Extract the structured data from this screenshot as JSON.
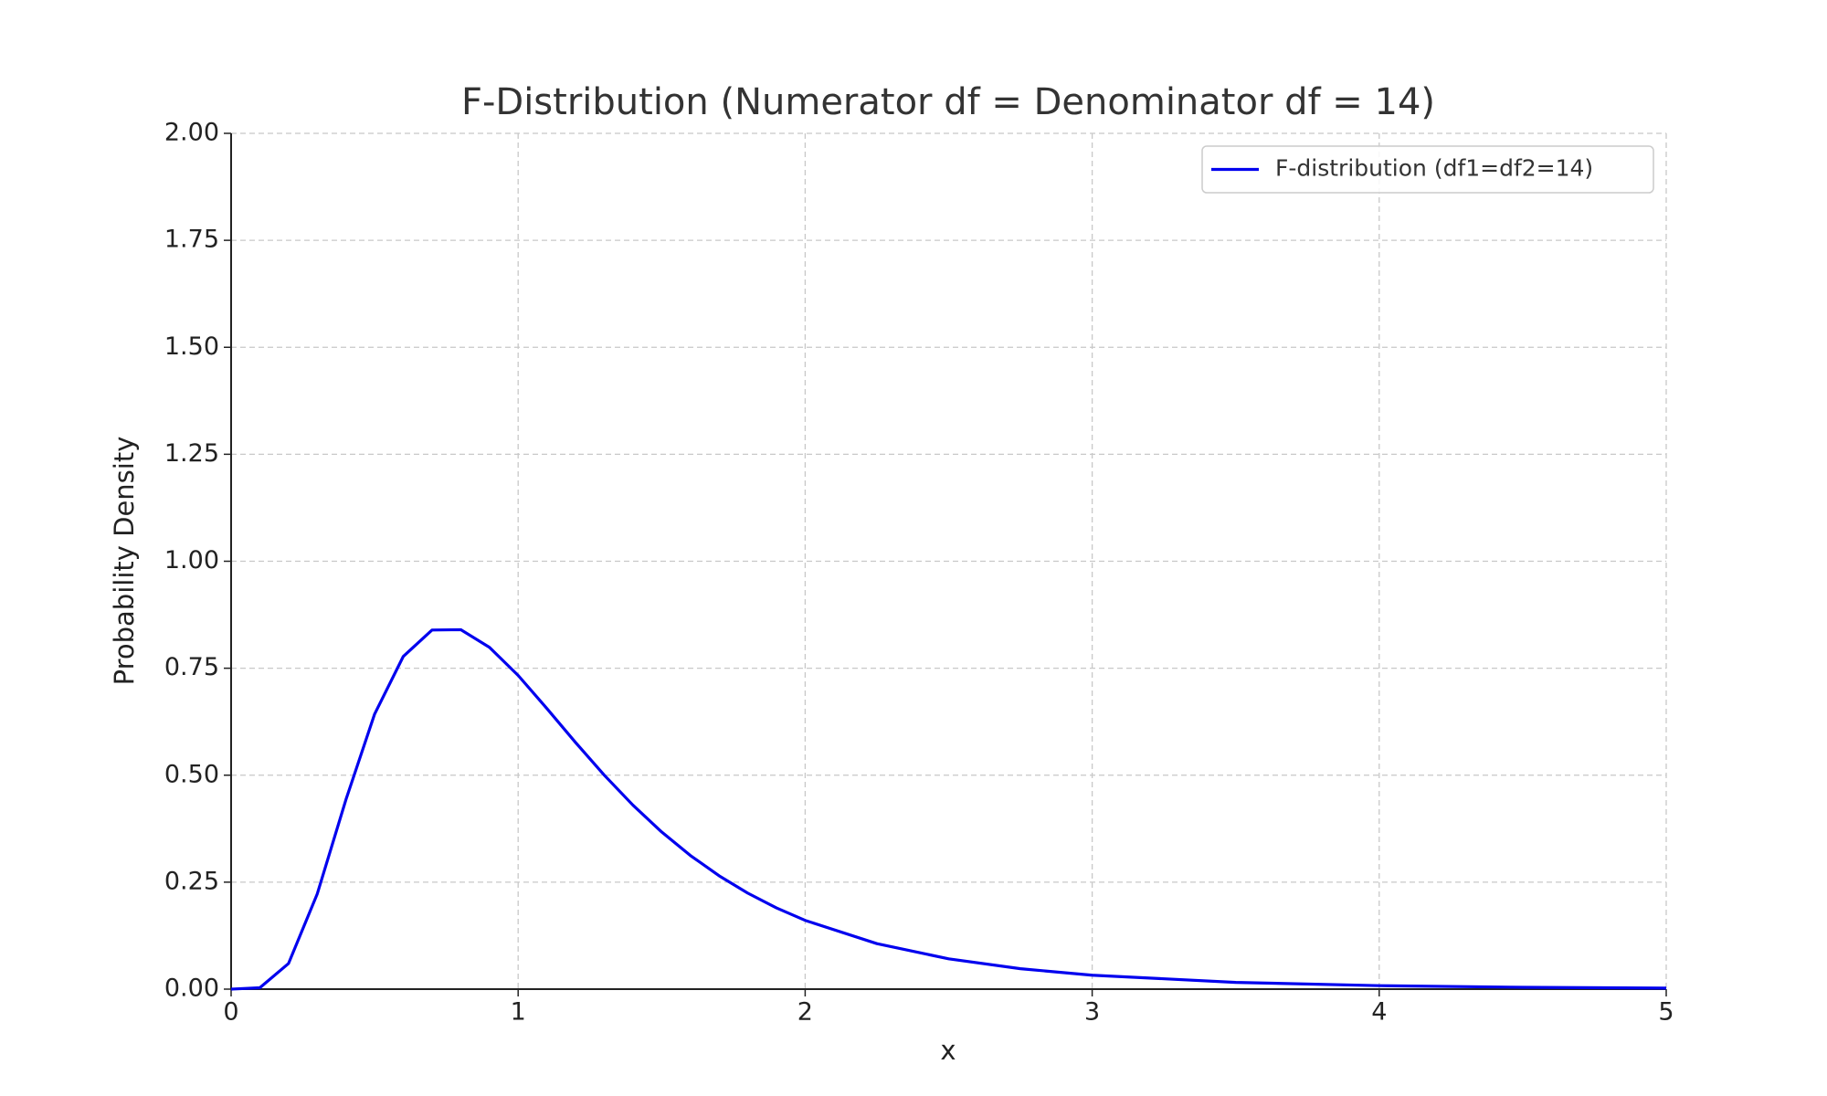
{
  "chart_data": {
    "type": "line",
    "title": "F-Distribution (Numerator df = Denominator df = 14)",
    "x_label": "x",
    "y_label": "Probability Density",
    "x": [
      0,
      0.1,
      0.2,
      0.3,
      0.4,
      0.5,
      0.6,
      0.7,
      0.8,
      0.9,
      1.0,
      1.1,
      1.2,
      1.3,
      1.4,
      1.5,
      1.6,
      1.7,
      1.8,
      1.9,
      2.0,
      2.25,
      2.5,
      2.75,
      3.0,
      3.5,
      4.0,
      4.5,
      5.0
    ],
    "series": [
      {
        "name": "F-distribution (df1=df2=14)",
        "color": "#0000ee",
        "values": [
          0,
          0.0032,
          0.0599,
          0.2224,
          0.4428,
          0.6429,
          0.7777,
          0.8393,
          0.8401,
          0.7989,
          0.7332,
          0.656,
          0.5765,
          0.5001,
          0.43,
          0.3673,
          0.3124,
          0.265,
          0.2244,
          0.1899,
          0.1607,
          0.1063,
          0.0708,
          0.0478,
          0.0326,
          0.0158,
          0.0081,
          0.0043,
          0.0024
        ]
      }
    ],
    "xlim": [
      0,
      5
    ],
    "ylim": [
      0,
      2
    ],
    "xticks": [
      0,
      1,
      2,
      3,
      4,
      5
    ],
    "yticks": [
      {
        "value": 0,
        "label": "0.00"
      },
      {
        "value": 0.25,
        "label": "0.25"
      },
      {
        "value": 0.5,
        "label": "0.50"
      },
      {
        "value": 0.75,
        "label": "0.75"
      },
      {
        "value": 1,
        "label": "1.00"
      },
      {
        "value": 1.25,
        "label": "1.25"
      },
      {
        "value": 1.5,
        "label": "1.50"
      },
      {
        "value": 1.75,
        "label": "1.75"
      },
      {
        "value": 2,
        "label": "2.00"
      }
    ],
    "grid": true,
    "legend": "upper right"
  }
}
